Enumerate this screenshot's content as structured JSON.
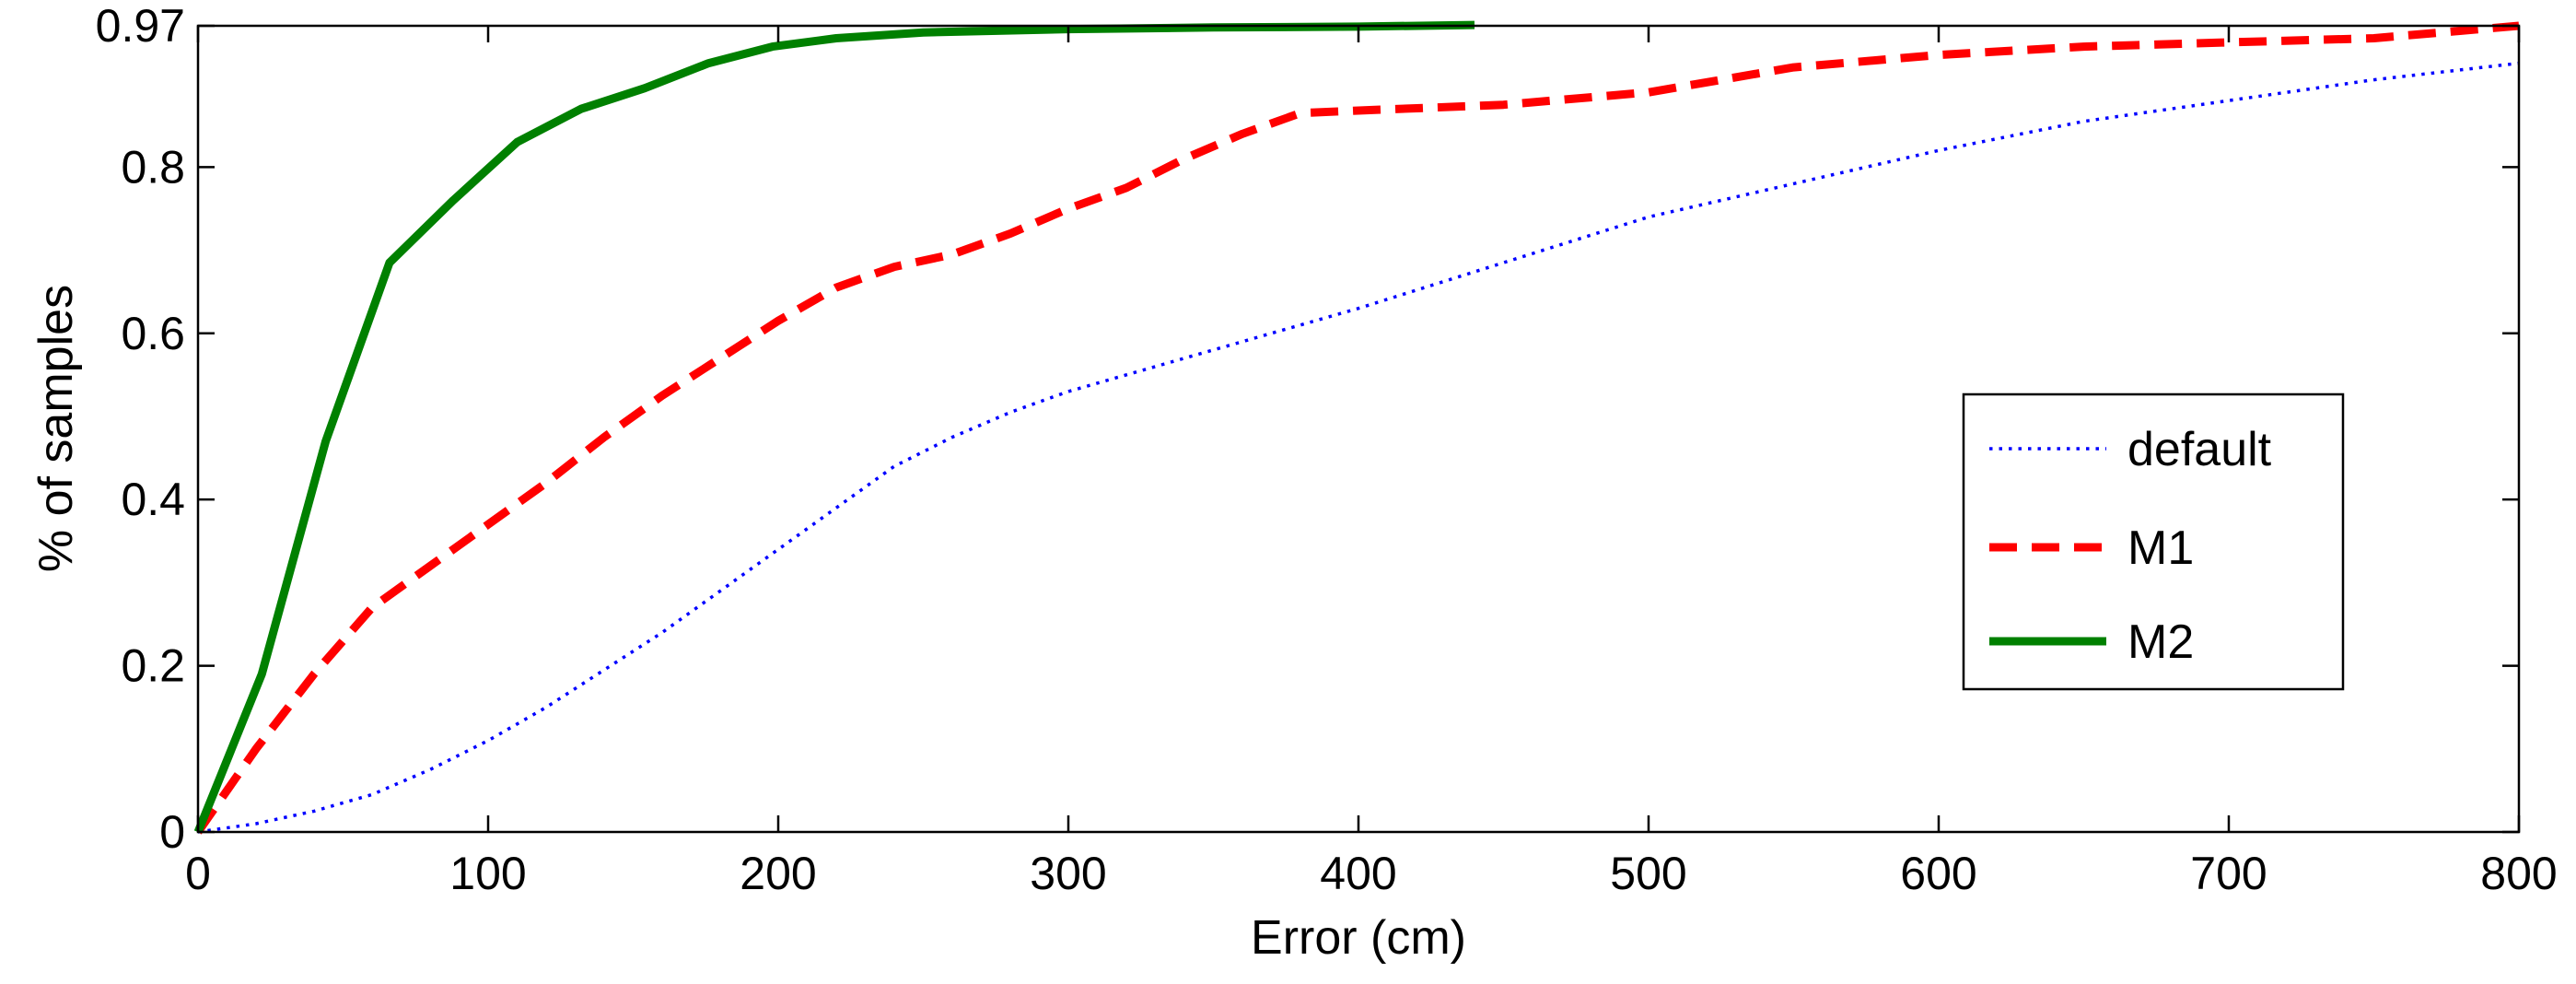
{
  "chart_data": {
    "type": "line",
    "title": "",
    "xlabel": "Error (cm)",
    "ylabel": "% of samples",
    "xlim": [
      0,
      800
    ],
    "ylim": [
      0,
      0.97
    ],
    "xticks": [
      0,
      100,
      200,
      300,
      400,
      500,
      600,
      700,
      800
    ],
    "xtick_labels": [
      "0",
      "100",
      "200",
      "300",
      "400",
      "500",
      "600",
      "700",
      "800"
    ],
    "yticks": [
      0,
      0.2,
      0.4,
      0.6,
      0.8,
      0.97
    ],
    "ytick_labels": [
      "0",
      "0.2",
      "0.4",
      "0.6",
      "0.8",
      "0.97"
    ],
    "grid": false,
    "legend_position": "right",
    "series": [
      {
        "name": "default",
        "color": "#0000ff",
        "dash": "dotted",
        "points": [
          [
            0,
            0
          ],
          [
            20,
            0.01
          ],
          [
            40,
            0.025
          ],
          [
            60,
            0.045
          ],
          [
            80,
            0.075
          ],
          [
            100,
            0.11
          ],
          [
            120,
            0.15
          ],
          [
            140,
            0.195
          ],
          [
            160,
            0.24
          ],
          [
            180,
            0.29
          ],
          [
            200,
            0.34
          ],
          [
            220,
            0.39
          ],
          [
            240,
            0.44
          ],
          [
            260,
            0.475
          ],
          [
            280,
            0.505
          ],
          [
            300,
            0.53
          ],
          [
            350,
            0.58
          ],
          [
            400,
            0.63
          ],
          [
            450,
            0.685
          ],
          [
            500,
            0.74
          ],
          [
            550,
            0.78
          ],
          [
            600,
            0.82
          ],
          [
            650,
            0.855
          ],
          [
            700,
            0.88
          ],
          [
            750,
            0.905
          ],
          [
            800,
            0.925
          ]
        ]
      },
      {
        "name": "M1",
        "color": "#ff0000",
        "dash": "dashed",
        "points": [
          [
            0,
            0
          ],
          [
            20,
            0.1
          ],
          [
            40,
            0.19
          ],
          [
            60,
            0.27
          ],
          [
            80,
            0.32
          ],
          [
            100,
            0.37
          ],
          [
            120,
            0.42
          ],
          [
            140,
            0.475
          ],
          [
            160,
            0.525
          ],
          [
            180,
            0.57
          ],
          [
            200,
            0.615
          ],
          [
            220,
            0.655
          ],
          [
            240,
            0.68
          ],
          [
            260,
            0.695
          ],
          [
            280,
            0.72
          ],
          [
            300,
            0.75
          ],
          [
            320,
            0.775
          ],
          [
            340,
            0.81
          ],
          [
            360,
            0.84
          ],
          [
            380,
            0.865
          ],
          [
            400,
            0.868
          ],
          [
            450,
            0.875
          ],
          [
            500,
            0.89
          ],
          [
            550,
            0.92
          ],
          [
            600,
            0.935
          ],
          [
            650,
            0.945
          ],
          [
            700,
            0.95
          ],
          [
            750,
            0.955
          ],
          [
            800,
            0.97
          ]
        ]
      },
      {
        "name": "M2",
        "color": "#008000",
        "dash": "solid",
        "points": [
          [
            0,
            0
          ],
          [
            22,
            0.19
          ],
          [
            44,
            0.47
          ],
          [
            66,
            0.685
          ],
          [
            88,
            0.76
          ],
          [
            110,
            0.83
          ],
          [
            132,
            0.87
          ],
          [
            154,
            0.895
          ],
          [
            176,
            0.925
          ],
          [
            198,
            0.945
          ],
          [
            220,
            0.955
          ],
          [
            250,
            0.962
          ],
          [
            300,
            0.966
          ],
          [
            350,
            0.968
          ],
          [
            400,
            0.969
          ],
          [
            440,
            0.971
          ]
        ]
      }
    ]
  }
}
